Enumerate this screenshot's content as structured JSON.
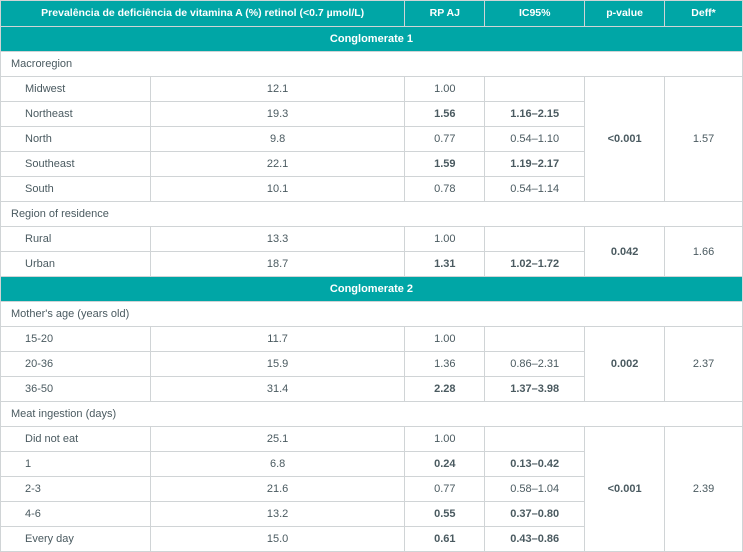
{
  "headers": {
    "prevalence": "Prevalência de deficiência de vitamina A (%) retinol (<0.7 µmol/L)",
    "rpaj": "RP AJ",
    "ic95": "IC95%",
    "pvalue": "p-value",
    "deff": "Deff*"
  },
  "sections": {
    "cong1": "Conglomerate 1",
    "cong2": "Conglomerate 2"
  },
  "groups": {
    "macroregion": "Macroregion",
    "region_residence": "Region of residence",
    "mother_age": "Mother's age (years old)",
    "meat_ingestion": "Meat ingestion (days)"
  },
  "macroregion": {
    "pvalue": "<0.001",
    "deff": "1.57",
    "rows": {
      "midwest": {
        "label": "Midwest",
        "prev": "12.1",
        "rp": "1.00",
        "rp_b": false,
        "ic": "",
        "ic_b": false
      },
      "northeast": {
        "label": "Northeast",
        "prev": "19.3",
        "rp": "1.56",
        "rp_b": true,
        "ic": "1.16–2.15",
        "ic_b": true
      },
      "north": {
        "label": "North",
        "prev": "9.8",
        "rp": "0.77",
        "rp_b": false,
        "ic": "0.54–1.10",
        "ic_b": false
      },
      "southeast": {
        "label": "Southeast",
        "prev": "22.1",
        "rp": "1.59",
        "rp_b": true,
        "ic": "1.19–2.17",
        "ic_b": true
      },
      "south": {
        "label": "South",
        "prev": "10.1",
        "rp": "0.78",
        "rp_b": false,
        "ic": "0.54–1.14",
        "ic_b": false
      }
    }
  },
  "region_residence": {
    "pvalue": "0.042",
    "deff": "1.66",
    "rows": {
      "rural": {
        "label": "Rural",
        "prev": "13.3",
        "rp": "1.00",
        "rp_b": false,
        "ic": "",
        "ic_b": false
      },
      "urban": {
        "label": "Urban",
        "prev": "18.7",
        "rp": "1.31",
        "rp_b": true,
        "ic": "1.02–1.72",
        "ic_b": true
      }
    }
  },
  "mother_age": {
    "pvalue": "0.002",
    "deff": "2.37",
    "rows": {
      "a15_20": {
        "label": "15-20",
        "prev": "11.7",
        "rp": "1.00",
        "rp_b": false,
        "ic": "",
        "ic_b": false
      },
      "a20_36": {
        "label": "20-36",
        "prev": "15.9",
        "rp": "1.36",
        "rp_b": false,
        "ic": "0.86–2.31",
        "ic_b": false
      },
      "a36_50": {
        "label": "36-50",
        "prev": "31.4",
        "rp": "2.28",
        "rp_b": true,
        "ic": "1.37–3.98",
        "ic_b": true
      }
    }
  },
  "meat_ingestion": {
    "pvalue": "<0.001",
    "deff": "2.39",
    "rows": {
      "did_not": {
        "label": "Did not eat",
        "prev": "25.1",
        "rp": "1.00",
        "rp_b": false,
        "ic": "",
        "ic_b": false
      },
      "d1": {
        "label": "1",
        "prev": "6.8",
        "rp": "0.24",
        "rp_b": true,
        "ic": "0.13–0.42",
        "ic_b": true
      },
      "d2_3": {
        "label": "2-3",
        "prev": "21.6",
        "rp": "0.77",
        "rp_b": false,
        "ic": "0.58–1.04",
        "ic_b": false
      },
      "d4_6": {
        "label": "4-6",
        "prev": "13.2",
        "rp": "0.55",
        "rp_b": true,
        "ic": "0.37–0.80",
        "ic_b": true
      },
      "every": {
        "label": "Every day",
        "prev": "15.0",
        "rp": "0.61",
        "rp_b": true,
        "ic": "0.43–0.86",
        "ic_b": true
      }
    }
  }
}
